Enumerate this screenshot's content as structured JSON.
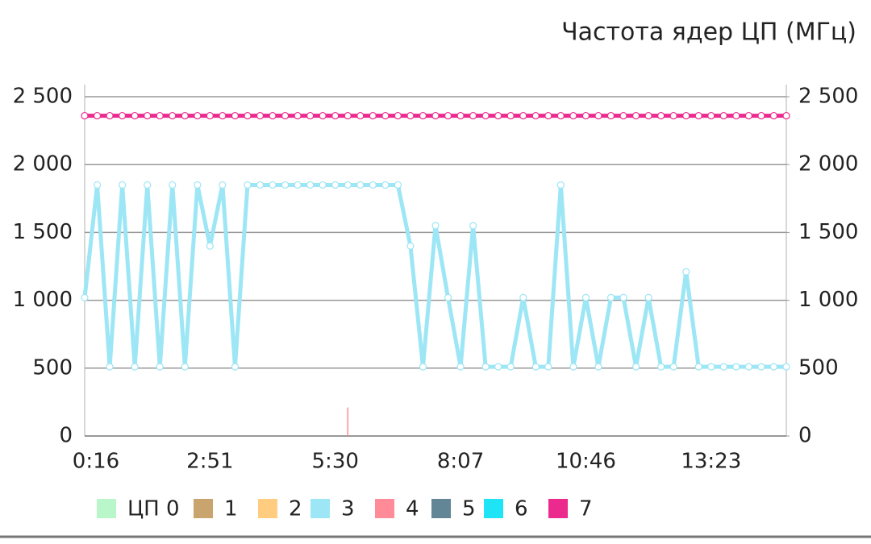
{
  "chart_data": {
    "type": "line",
    "title": "Частота ядер ЦП (МГц)",
    "categories": [
      "0:16",
      null,
      null,
      null,
      null,
      null,
      null,
      null,
      null,
      null,
      "2:51",
      null,
      null,
      null,
      null,
      null,
      null,
      null,
      null,
      null,
      "5:30",
      null,
      null,
      null,
      null,
      null,
      null,
      null,
      null,
      null,
      "8:07",
      null,
      null,
      null,
      null,
      null,
      null,
      null,
      null,
      null,
      "10:46",
      null,
      null,
      null,
      null,
      null,
      null,
      null,
      null,
      null,
      "13:23",
      null,
      null,
      null,
      null,
      null,
      null
    ],
    "ylim": [
      0,
      2500
    ],
    "yticks": [
      0,
      500,
      {
        "value": 1000,
        "label": "1 000"
      },
      {
        "value": 1500,
        "label": "1 500"
      },
      {
        "value": 2000,
        "label": "2 000"
      },
      {
        "value": 2500,
        "label": "2 500"
      }
    ],
    "y2lim": [
      0,
      2500
    ],
    "y2ticks": [
      0,
      500,
      {
        "value": 1000,
        "label": "1 000"
      },
      {
        "value": 1500,
        "label": "1 500"
      },
      {
        "value": 2000,
        "label": "2 000"
      },
      {
        "value": 2500,
        "label": "2 500"
      }
    ],
    "grid": true,
    "legend": "bottom",
    "series": [
      {
        "name": "ЦП 0",
        "color": "#b9f6ca",
        "values": [
          null,
          null,
          null,
          null,
          null,
          null,
          null,
          null,
          null,
          null,
          null,
          null,
          null,
          null,
          null,
          null,
          null,
          null,
          null,
          null,
          null,
          null,
          null,
          null,
          null,
          null,
          null,
          null,
          null,
          null,
          null,
          null,
          null,
          null,
          null,
          null,
          null,
          null,
          null,
          null,
          null,
          null,
          null,
          null,
          null,
          null,
          null,
          null,
          null,
          null,
          null,
          null,
          null,
          null,
          null,
          null,
          null
        ]
      },
      {
        "name": "1",
        "color": "#c9a46e",
        "values": [
          null,
          null,
          null,
          null,
          null,
          null,
          null,
          null,
          null,
          null,
          null,
          null,
          null,
          null,
          null,
          null,
          null,
          null,
          null,
          null,
          null,
          null,
          null,
          null,
          null,
          null,
          null,
          null,
          null,
          null,
          null,
          null,
          null,
          null,
          null,
          null,
          null,
          null,
          null,
          null,
          null,
          null,
          null,
          null,
          null,
          null,
          null,
          null,
          null,
          null,
          null,
          null,
          null,
          null,
          null,
          null,
          null
        ]
      },
      {
        "name": "2",
        "color": "#ffcc80",
        "values": [
          null,
          null,
          null,
          null,
          null,
          null,
          null,
          null,
          null,
          null,
          null,
          null,
          null,
          null,
          null,
          null,
          null,
          null,
          null,
          null,
          null,
          null,
          null,
          null,
          null,
          null,
          null,
          null,
          null,
          null,
          null,
          null,
          null,
          null,
          null,
          null,
          null,
          null,
          null,
          null,
          null,
          null,
          null,
          null,
          null,
          null,
          null,
          null,
          null,
          null,
          null,
          null,
          null,
          null,
          null,
          null,
          null
        ]
      },
      {
        "name": "3",
        "color": "#9de6f5",
        "values": [
          1020,
          1850,
          510,
          1850,
          510,
          1850,
          510,
          1850,
          510,
          1850,
          1400,
          1850,
          510,
          1850,
          1850,
          1850,
          1850,
          1850,
          1850,
          1850,
          1850,
          1850,
          1850,
          1850,
          1850,
          1850,
          1400,
          510,
          1550,
          1020,
          510,
          1550,
          510,
          510,
          510,
          1020,
          510,
          510,
          1850,
          510,
          1020,
          510,
          1020,
          1020,
          510,
          1020,
          510,
          510,
          1210,
          510,
          510,
          510,
          510,
          510,
          510,
          510,
          510
        ]
      },
      {
        "name": "4",
        "color": "#ff8a98",
        "values": [
          null,
          null,
          null,
          null,
          null,
          null,
          null,
          null,
          null,
          null,
          null,
          null,
          null,
          null,
          null,
          null,
          null,
          null,
          null,
          null,
          null,
          210,
          null,
          null,
          null,
          null,
          null,
          null,
          null,
          null,
          null,
          null,
          null,
          null,
          null,
          null,
          null,
          null,
          null,
          null,
          null,
          null,
          null,
          null,
          null,
          null,
          null,
          null,
          null,
          null,
          null,
          null,
          null,
          null,
          null,
          null,
          null
        ]
      },
      {
        "name": "5",
        "color": "#628696",
        "values": [
          null,
          null,
          null,
          null,
          null,
          null,
          null,
          null,
          null,
          null,
          null,
          null,
          null,
          null,
          null,
          null,
          null,
          null,
          null,
          null,
          null,
          null,
          null,
          null,
          null,
          null,
          null,
          null,
          null,
          null,
          null,
          null,
          null,
          null,
          null,
          null,
          null,
          null,
          null,
          null,
          null,
          null,
          null,
          null,
          null,
          null,
          null,
          null,
          null,
          null,
          null,
          null,
          null,
          null,
          null,
          null,
          null
        ]
      },
      {
        "name": "6",
        "color": "#1ee4f5",
        "values": [
          null,
          null,
          null,
          null,
          null,
          null,
          null,
          null,
          null,
          null,
          null,
          null,
          null,
          null,
          null,
          null,
          null,
          null,
          null,
          null,
          null,
          null,
          null,
          null,
          null,
          null,
          null,
          null,
          null,
          null,
          null,
          null,
          null,
          null,
          null,
          null,
          null,
          null,
          null,
          null,
          null,
          null,
          null,
          null,
          null,
          null,
          null,
          null,
          null,
          null,
          null,
          null,
          null,
          null,
          null,
          null,
          null
        ]
      },
      {
        "name": "7",
        "color": "#ec2a8e",
        "values": [
          2360,
          2360,
          2360,
          2360,
          2360,
          2360,
          2360,
          2360,
          2360,
          2360,
          2360,
          2360,
          2360,
          2360,
          2360,
          2360,
          2360,
          2360,
          2360,
          2360,
          2360,
          2360,
          2360,
          2360,
          2360,
          2360,
          2360,
          2360,
          2360,
          2360,
          2360,
          2360,
          2360,
          2360,
          2360,
          2360,
          2360,
          2360,
          2360,
          2360,
          2360,
          2360,
          2360,
          2360,
          2360,
          2360,
          2360,
          2360,
          2360,
          2360,
          2360,
          2360,
          2360,
          2360,
          2360,
          2360,
          2360
        ]
      }
    ]
  }
}
